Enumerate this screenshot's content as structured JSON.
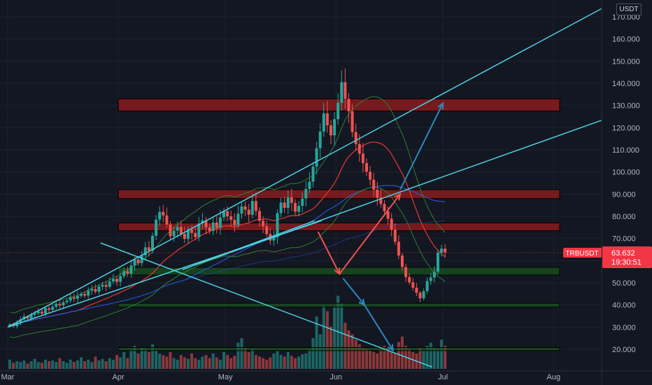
{
  "header": {
    "currency": "USDT"
  },
  "price_badge": {
    "symbol": "TRBUSDT",
    "price": "63.632",
    "countdown": "19:30:51",
    "color": "#f23645"
  },
  "chart_data": {
    "type": "candlestick",
    "symbol": "TRBUSDT",
    "y_axis": {
      "ticks": [
        "20.000",
        "30.000",
        "40.000",
        "50.000",
        "60.000",
        "70.000",
        "80.000",
        "90.000",
        "100.000",
        "110.000",
        "120.000",
        "130.000",
        "140.000",
        "150.000",
        "160.000",
        "170.000"
      ],
      "range": [
        12,
        177
      ]
    },
    "x_axis": {
      "labels": [
        "Mar",
        "Apr",
        "May",
        "Jun",
        "Jul",
        "Aug"
      ],
      "range": [
        "2023-03-01",
        "2023-08-18"
      ]
    },
    "current_price": 63.632,
    "colors": {
      "up": "#26a69a",
      "down": "#ef5350",
      "trendline": "#4dd0e1",
      "projection_up": "#ef5350",
      "projection_down": "#2e86c1"
    },
    "series": {
      "close": [
        31.2,
        30.4,
        32.1,
        33.5,
        34.8,
        33.9,
        35.6,
        36.2,
        37.0,
        36.1,
        38.5,
        37.8,
        39.2,
        40.5,
        39.8,
        41.2,
        42.0,
        43.5,
        42.8,
        44.1,
        45.0,
        44.2,
        46.5,
        47.2,
        46.0,
        48.3,
        49.1,
        48.2,
        50.6,
        51.8,
        50.4,
        53.0,
        55.2,
        54.1,
        57.8,
        60.5,
        58.9,
        62.4,
        66.0,
        64.5,
        71.2,
        78.5,
        82.0,
        80.4,
        76.3,
        71.0,
        73.5,
        75.2,
        72.1,
        69.8,
        74.0,
        72.5,
        70.6,
        76.8,
        78.1,
        75.0,
        73.4,
        77.2,
        74.8,
        79.5,
        82.3,
        80.0,
        78.4,
        76.0,
        81.2,
        84.5,
        83.0,
        80.7,
        86.9,
        82.4,
        78.0,
        75.5,
        72.0,
        69.1,
        70.5,
        81.4,
        86.2,
        83.8,
        88.5,
        86.0,
        82.1,
        84.7,
        88.0,
        92.3,
        95.6,
        102.4,
        110.7,
        118.2,
        126.4,
        121.0,
        116.5,
        123.8,
        131.2,
        140.5,
        133.0,
        127.4,
        118.0,
        112.6,
        108.3,
        104.0,
        100.1,
        96.5,
        92.0,
        88.4,
        85.6,
        82.3,
        78.9,
        74.0,
        68.5,
        62.3,
        57.1,
        52.6,
        50.2,
        47.8,
        45.5,
        43.0,
        46.2,
        50.8,
        52.4,
        55.0,
        63.6,
        65.4,
        63.6
      ],
      "volume_relative": [
        0.12,
        0.08,
        0.1,
        0.09,
        0.11,
        0.07,
        0.1,
        0.13,
        0.09,
        0.08,
        0.12,
        0.1,
        0.11,
        0.09,
        0.14,
        0.1,
        0.08,
        0.12,
        0.09,
        0.11,
        0.15,
        0.1,
        0.12,
        0.09,
        0.16,
        0.11,
        0.13,
        0.1,
        0.14,
        0.12,
        0.18,
        0.15,
        0.22,
        0.14,
        0.25,
        0.3,
        0.2,
        0.28,
        0.26,
        0.22,
        0.32,
        0.24,
        0.2,
        0.18,
        0.16,
        0.22,
        0.14,
        0.12,
        0.18,
        0.15,
        0.13,
        0.2,
        0.14,
        0.12,
        0.16,
        0.18,
        0.14,
        0.2,
        0.15,
        0.12,
        0.22,
        0.18,
        0.14,
        0.17,
        0.34,
        0.4,
        0.28,
        0.22,
        0.26,
        0.18,
        0.16,
        0.14,
        0.12,
        0.15,
        0.2,
        0.24,
        0.18,
        0.16,
        0.22,
        0.17,
        0.14,
        0.16,
        0.19,
        0.2,
        0.25,
        0.4,
        0.68,
        0.45,
        0.82,
        0.75,
        0.55,
        0.8,
        0.95,
        0.85,
        0.6,
        0.5,
        0.45,
        0.38,
        0.32,
        0.28,
        0.26,
        0.24,
        0.22,
        0.2,
        0.26,
        0.3,
        0.28,
        0.22,
        0.2,
        0.35,
        0.42,
        0.3,
        0.26,
        0.22,
        0.2,
        0.28,
        0.24,
        0.3,
        0.34,
        0.28,
        0.26,
        0.38,
        0.3,
        0.2
      ]
    }
  }
}
